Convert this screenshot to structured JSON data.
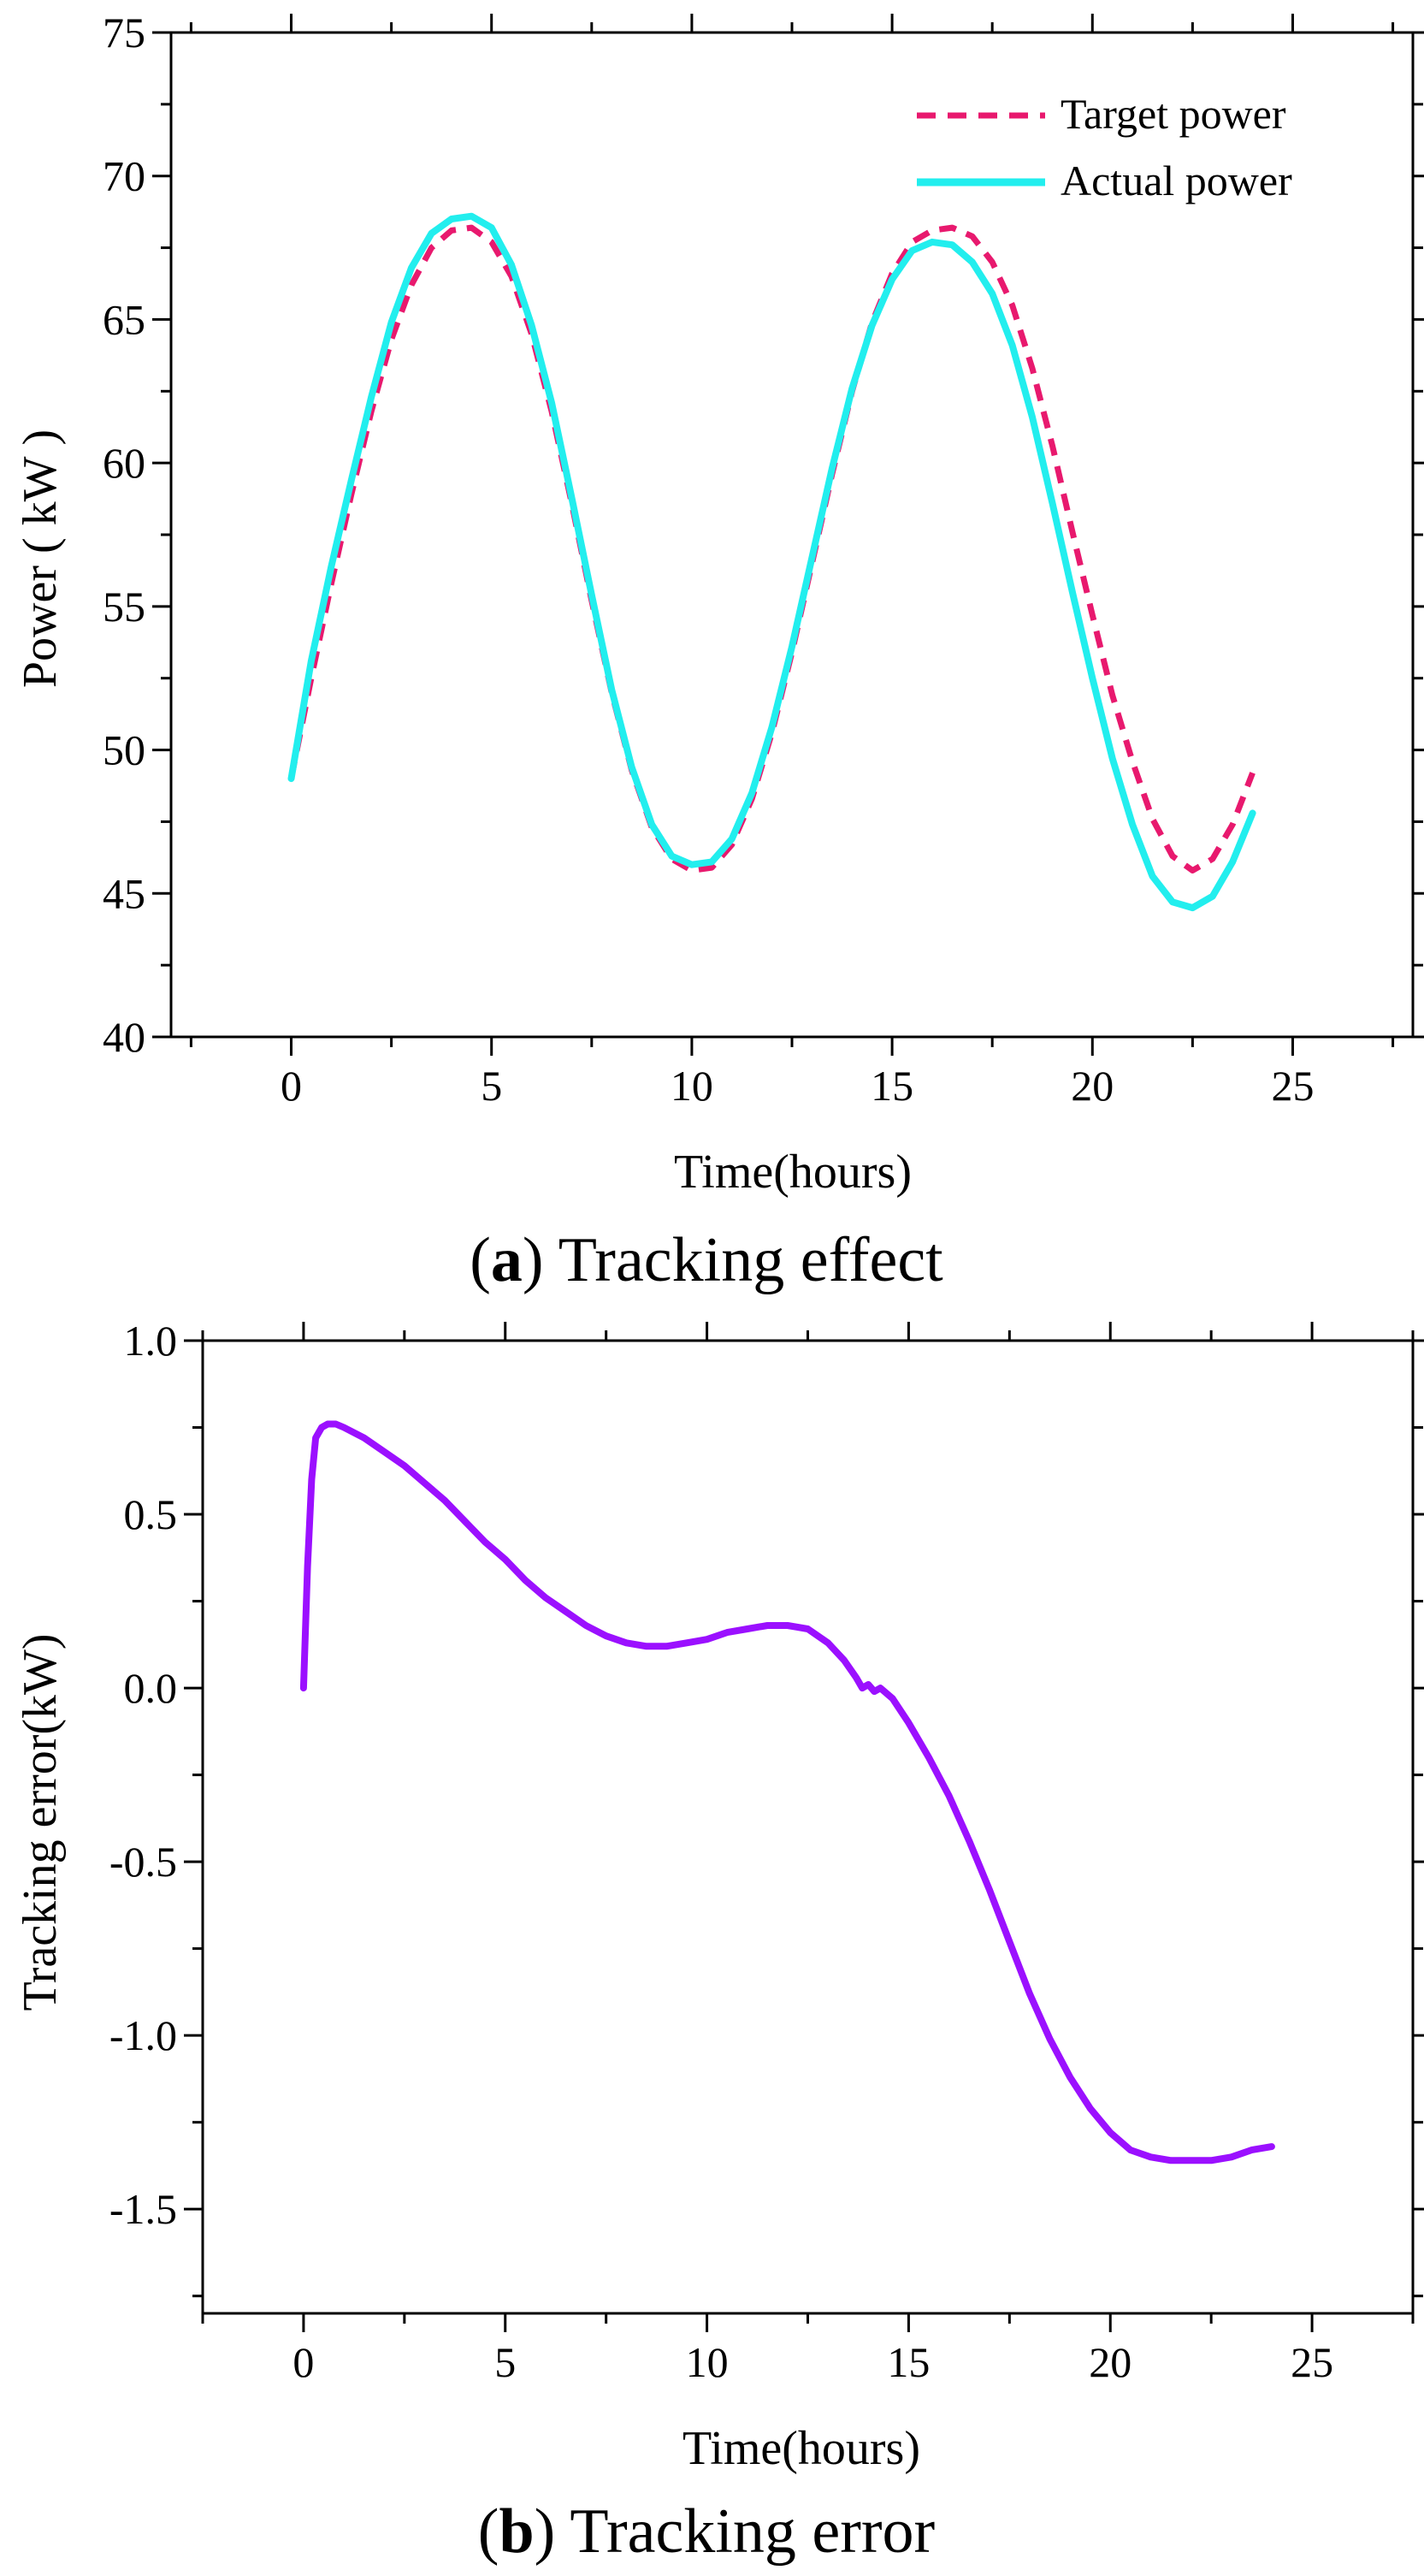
{
  "chart_data": [
    {
      "panel_label": "a",
      "caption": "Tracking effect",
      "type": "line",
      "xlabel": "Time(hours)",
      "ylabel": "Power ( kW )",
      "xlim": [
        -3,
        28
      ],
      "ylim": [
        40,
        75
      ],
      "xticks": [
        0,
        5,
        10,
        15,
        20,
        25
      ],
      "yticks": [
        40,
        45,
        50,
        55,
        60,
        65,
        70,
        75
      ],
      "grid": false,
      "legend_position": "top-right",
      "series": [
        {
          "name": "Target power",
          "style": "dashed",
          "color": "#e8196e",
          "x": [
            0,
            0.5,
            1,
            1.5,
            2,
            2.5,
            3,
            3.5,
            4,
            4.5,
            5,
            5.5,
            6,
            6.5,
            7,
            7.5,
            8,
            8.5,
            9,
            9.5,
            10,
            10.5,
            11,
            11.5,
            12,
            12.5,
            13,
            13.5,
            14,
            14.5,
            15,
            15.5,
            16,
            16.5,
            17,
            17.5,
            18,
            18.5,
            19,
            19.5,
            20,
            20.5,
            21,
            21.5,
            22,
            22.5,
            23,
            23.5,
            24
          ],
          "values": [
            49.0,
            52.5,
            55.8,
            58.9,
            61.8,
            64.3,
            66.2,
            67.5,
            68.1,
            68.2,
            67.7,
            66.5,
            64.5,
            61.8,
            58.6,
            55.2,
            52.0,
            49.3,
            47.3,
            46.2,
            45.8,
            45.9,
            46.7,
            48.3,
            50.6,
            53.4,
            56.5,
            59.6,
            62.5,
            64.9,
            66.6,
            67.7,
            68.1,
            68.2,
            67.9,
            67.0,
            65.5,
            63.3,
            60.6,
            57.6,
            54.7,
            51.9,
            49.6,
            47.6,
            46.3,
            45.8,
            46.2,
            47.4,
            49.2
          ]
        },
        {
          "name": "Actual power",
          "style": "solid",
          "color": "#22eeee",
          "x": [
            0,
            0.5,
            1,
            1.5,
            2,
            2.5,
            3,
            3.5,
            4,
            4.5,
            5,
            5.5,
            6,
            6.5,
            7,
            7.5,
            8,
            8.5,
            9,
            9.5,
            10,
            10.5,
            11,
            11.5,
            12,
            12.5,
            13,
            13.5,
            14,
            14.5,
            15,
            15.5,
            16,
            16.5,
            17,
            17.5,
            18,
            18.5,
            19,
            19.5,
            20,
            20.5,
            21,
            21.5,
            22,
            22.5,
            23,
            23.5,
            24
          ],
          "values": [
            49.0,
            53.1,
            56.4,
            59.4,
            62.3,
            64.9,
            66.8,
            68.0,
            68.5,
            68.6,
            68.2,
            66.9,
            64.8,
            62.1,
            58.8,
            55.4,
            52.1,
            49.4,
            47.4,
            46.3,
            46.0,
            46.1,
            46.9,
            48.5,
            50.8,
            53.6,
            56.7,
            59.8,
            62.6,
            64.8,
            66.4,
            67.4,
            67.7,
            67.6,
            67.0,
            65.9,
            64.1,
            61.6,
            58.6,
            55.5,
            52.5,
            49.7,
            47.4,
            45.6,
            44.7,
            44.5,
            44.9,
            46.1,
            47.8
          ]
        }
      ]
    },
    {
      "panel_label": "b",
      "caption": "Tracking error",
      "type": "line",
      "xlabel": "Time(hours)",
      "ylabel": "Tracking error(kW)",
      "xlim": [
        -2.5,
        27.5
      ],
      "ylim": [
        -1.8,
        1.0
      ],
      "xticks": [
        0,
        5,
        10,
        15,
        20,
        25
      ],
      "yticks": [
        -1.5,
        -1.0,
        -0.5,
        0.0,
        0.5,
        1.0
      ],
      "ytick_labels": [
        "-1.5",
        "-1.0",
        "-0.5",
        "0.0",
        "0.5",
        "1.0"
      ],
      "grid": false,
      "series": [
        {
          "name": "Tracking error",
          "style": "solid",
          "color": "#9b10ff",
          "x": [
            0,
            0.1,
            0.2,
            0.3,
            0.45,
            0.6,
            0.8,
            1,
            1.5,
            2,
            2.5,
            3,
            3.5,
            4,
            4.5,
            5,
            5.5,
            6,
            6.5,
            7,
            7.5,
            8,
            8.5,
            9,
            9.5,
            10,
            10.5,
            11,
            11.5,
            12,
            12.5,
            13,
            13.4,
            13.7,
            13.85,
            14.0,
            14.15,
            14.3,
            14.6,
            15,
            15.5,
            16,
            16.5,
            17,
            17.5,
            18,
            18.5,
            19,
            19.5,
            20,
            20.5,
            21,
            21.5,
            22,
            22.5,
            23,
            23.5,
            24
          ],
          "values": [
            0.0,
            0.35,
            0.6,
            0.72,
            0.75,
            0.76,
            0.76,
            0.75,
            0.72,
            0.68,
            0.64,
            0.59,
            0.54,
            0.48,
            0.42,
            0.37,
            0.31,
            0.26,
            0.22,
            0.18,
            0.15,
            0.13,
            0.12,
            0.12,
            0.13,
            0.14,
            0.16,
            0.17,
            0.18,
            0.18,
            0.17,
            0.13,
            0.08,
            0.03,
            0.0,
            0.01,
            -0.01,
            0.0,
            -0.03,
            -0.1,
            -0.2,
            -0.31,
            -0.44,
            -0.58,
            -0.73,
            -0.88,
            -1.01,
            -1.12,
            -1.21,
            -1.28,
            -1.33,
            -1.35,
            -1.36,
            -1.36,
            -1.36,
            -1.35,
            -1.33,
            -1.32
          ]
        }
      ]
    }
  ]
}
